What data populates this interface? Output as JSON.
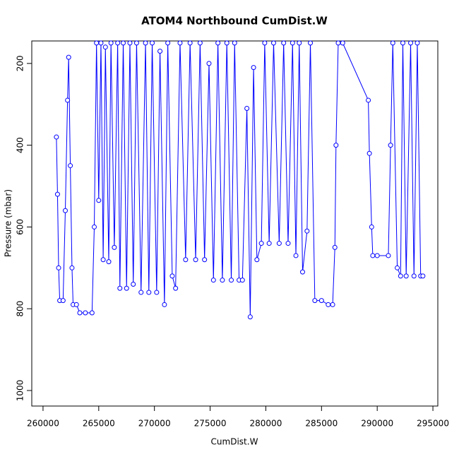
{
  "chart_data": {
    "type": "line",
    "title": "ATOM4 Northbound CumDist.W",
    "x_label": "CumDist.W",
    "y_label": "Pressure (mbar)",
    "x": [
      261200,
      261300,
      261400,
      261500,
      261800,
      262000,
      262200,
      262300,
      262450,
      262600,
      262700,
      263000,
      263300,
      263800,
      264400,
      264600,
      264800,
      265000,
      265200,
      265400,
      265600,
      265900,
      266100,
      266400,
      266700,
      266900,
      267200,
      267500,
      267800,
      268100,
      268400,
      268800,
      269200,
      269500,
      269800,
      270200,
      270500,
      270900,
      271200,
      271600,
      271900,
      272300,
      272800,
      273200,
      273700,
      274100,
      274500,
      274900,
      275300,
      275700,
      276100,
      276500,
      276900,
      277200,
      277600,
      277900,
      278300,
      278600,
      278900,
      279200,
      279600,
      279900,
      280300,
      280700,
      281200,
      281600,
      282000,
      282400,
      282700,
      283000,
      283300,
      283700,
      284000,
      284400,
      285000,
      285600,
      286000,
      286200,
      286300,
      286500,
      286900,
      289200,
      289300,
      289500,
      289600,
      290000,
      291000,
      291200,
      291400,
      291800,
      292100,
      292300,
      292600,
      293000,
      293300,
      293600,
      293900,
      294100
    ],
    "series": [
      {
        "name": "Pressure",
        "color": "#0000ff",
        "values": [
          380,
          520,
          700,
          780,
          780,
          560,
          290,
          185,
          450,
          700,
          790,
          790,
          810,
          810,
          810,
          600,
          150,
          535,
          150,
          680,
          160,
          685,
          150,
          650,
          150,
          750,
          150,
          750,
          150,
          740,
          150,
          760,
          150,
          760,
          150,
          760,
          170,
          790,
          150,
          720,
          750,
          150,
          680,
          150,
          680,
          150,
          680,
          200,
          730,
          150,
          730,
          150,
          730,
          150,
          730,
          730,
          310,
          820,
          210,
          680,
          640,
          150,
          640,
          150,
          640,
          150,
          640,
          150,
          670,
          150,
          710,
          610,
          150,
          780,
          780,
          790,
          790,
          650,
          400,
          150,
          150,
          290,
          420,
          600,
          670,
          670,
          670,
          400,
          150,
          700,
          720,
          150,
          720,
          150,
          720,
          150,
          720,
          720
        ]
      }
    ],
    "xlim": [
      258990,
      295440
    ],
    "ylim": [
      1038,
      145
    ],
    "xticks": [
      260000,
      265000,
      270000,
      275000,
      280000,
      285000,
      290000,
      295000
    ],
    "yticks": [
      200,
      400,
      600,
      800,
      1000
    ]
  }
}
